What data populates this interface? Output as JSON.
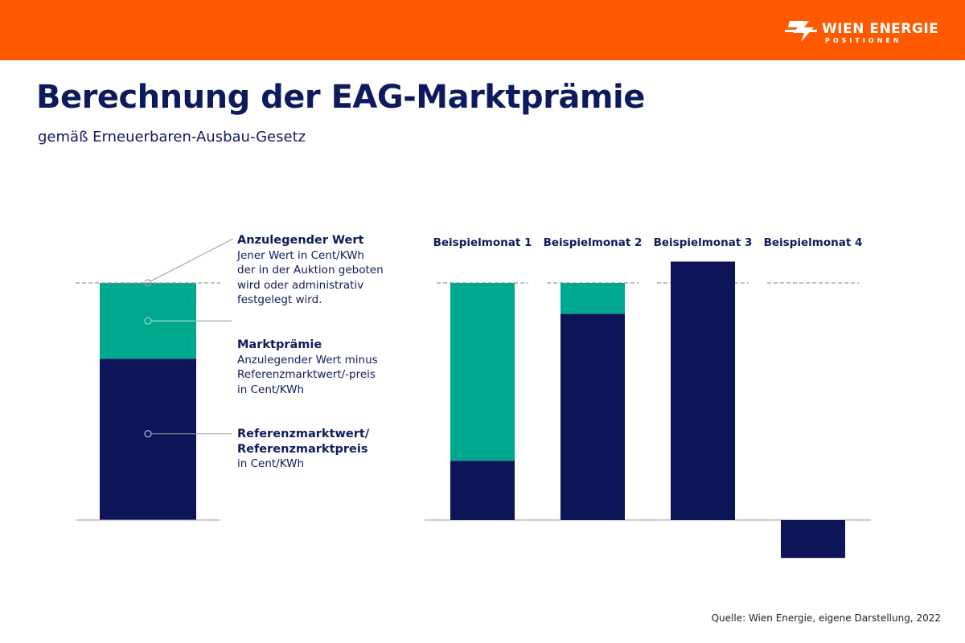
{
  "header": {
    "logo_name": "WIEN ENERGIE",
    "logo_sub": "POSITIONEN",
    "bar_color": "#ff5a00"
  },
  "title": "Berechnung der EAG-Marktprämie",
  "subtitle": "gemäß Erneuerbaren-Ausbau-Gesetz",
  "legend": {
    "anzulegender": {
      "heading": "Anzulegender Wert",
      "lines": [
        "Jener Wert in Cent/KWh",
        "der in der Auktion geboten",
        "wird oder administrativ",
        "festgelegt wird."
      ]
    },
    "marktpraemie": {
      "heading": "Marktprämie",
      "lines": [
        "Anzulegender Wert minus",
        "Referenzmarktwert/-preis",
        "in Cent/KWh"
      ]
    },
    "referenz": {
      "heading_lines": [
        "Referenzmarktwert/",
        "Referenzmarktpreis"
      ],
      "lines": [
        "in Cent/KWh"
      ]
    }
  },
  "colors": {
    "referenz": "#0d1457",
    "marktpraemie": "#00a88f",
    "title": "#0d1b5e",
    "dashed": "#999999"
  },
  "chart_data": [
    {
      "type": "bar",
      "title": "",
      "categories": [
        ""
      ],
      "series": [
        {
          "name": "Referenzmarktwert/ Referenzmarktpreis",
          "values": [
            0.68
          ]
        },
        {
          "name": "Marktprämie",
          "values": [
            0.32
          ]
        }
      ],
      "reference_line": 1.0,
      "ylim": [
        0,
        1.0
      ]
    },
    {
      "type": "bar",
      "title": "",
      "categories": [
        "Beispielmonat 1",
        "Beispielmonat 2",
        "Beispielmonat 3",
        "Beispielmonat 4"
      ],
      "series": [
        {
          "name": "Referenzmarktwert/ Referenzmarktpreis",
          "values": [
            0.25,
            0.87,
            1.09,
            -0.16
          ]
        },
        {
          "name": "Marktprämie",
          "values": [
            0.75,
            0.13,
            0,
            0
          ]
        }
      ],
      "reference_line": 1.0,
      "ylim": [
        -0.2,
        1.1
      ]
    }
  ],
  "source": "Quelle: Wien Energie, eigene Darstellung, 2022"
}
